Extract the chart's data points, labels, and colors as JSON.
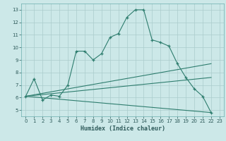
{
  "xlabel": "Humidex (Indice chaleur)",
  "bg_color": "#cce8e8",
  "line_color": "#2e7d6e",
  "grid_color": "#aacccc",
  "xlim": [
    -0.5,
    23.5
  ],
  "ylim": [
    4.5,
    13.5
  ],
  "xticks": [
    0,
    1,
    2,
    3,
    4,
    5,
    6,
    7,
    8,
    9,
    10,
    11,
    12,
    13,
    14,
    15,
    16,
    17,
    18,
    19,
    20,
    21,
    22,
    23
  ],
  "yticks": [
    5,
    6,
    7,
    8,
    9,
    10,
    11,
    12,
    13
  ],
  "main_line": [
    [
      0,
      6.1
    ],
    [
      1,
      7.5
    ],
    [
      2,
      5.8
    ],
    [
      3,
      6.2
    ],
    [
      4,
      6.1
    ],
    [
      5,
      7.0
    ],
    [
      6,
      9.7
    ],
    [
      7,
      9.7
    ],
    [
      8,
      9.0
    ],
    [
      9,
      9.5
    ],
    [
      10,
      10.8
    ],
    [
      11,
      11.1
    ],
    [
      12,
      12.4
    ],
    [
      13,
      13.0
    ],
    [
      14,
      13.0
    ],
    [
      15,
      10.6
    ],
    [
      16,
      10.4
    ],
    [
      17,
      10.1
    ],
    [
      18,
      8.7
    ],
    [
      19,
      7.6
    ],
    [
      20,
      6.7
    ],
    [
      21,
      6.1
    ],
    [
      22,
      4.8
    ]
  ],
  "line2": [
    [
      0,
      6.1
    ],
    [
      22,
      8.7
    ]
  ],
  "line3": [
    [
      0,
      6.1
    ],
    [
      22,
      7.6
    ]
  ],
  "line4": [
    [
      0,
      6.1
    ],
    [
      22,
      4.8
    ]
  ]
}
